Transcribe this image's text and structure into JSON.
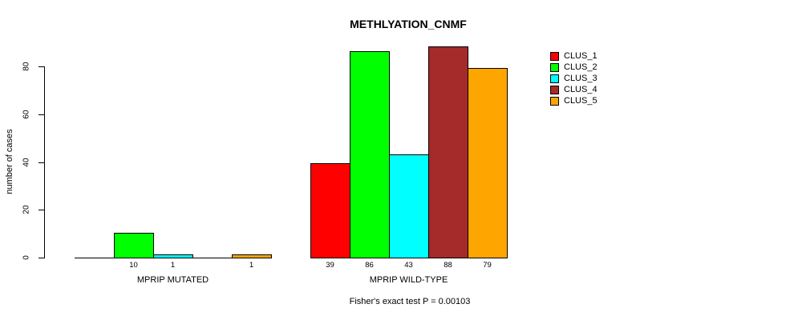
{
  "chart_data": {
    "type": "bar",
    "title": "METHLYATION_CNMF",
    "xlabel": "",
    "ylabel": "number of cases",
    "categories": [
      "MPRIP MUTATED",
      "MPRIP WILD-TYPE"
    ],
    "series": [
      {
        "name": "CLUS_1",
        "color": "#FF0000",
        "values": [
          0,
          39
        ]
      },
      {
        "name": "CLUS_2",
        "color": "#00FF00",
        "values": [
          10,
          86
        ]
      },
      {
        "name": "CLUS_3",
        "color": "#00FFFF",
        "values": [
          1,
          43
        ]
      },
      {
        "name": "CLUS_4",
        "color": "#A52A2A",
        "values": [
          0,
          88
        ]
      },
      {
        "name": "CLUS_5",
        "color": "#FFA500",
        "values": [
          1,
          79
        ]
      }
    ],
    "bar_value_labels": [
      [
        "",
        "10",
        "1",
        "",
        "1"
      ],
      [
        "39",
        "86",
        "43",
        "88",
        "79"
      ]
    ],
    "yticks": [
      0,
      20,
      40,
      60,
      80
    ],
    "ylim": [
      0,
      90
    ],
    "grid": false,
    "legend_position": "right",
    "annotation": "Fisher's exact test P = 0.00103",
    "text_color": "#000000",
    "background_color": "#FFFFFF"
  }
}
